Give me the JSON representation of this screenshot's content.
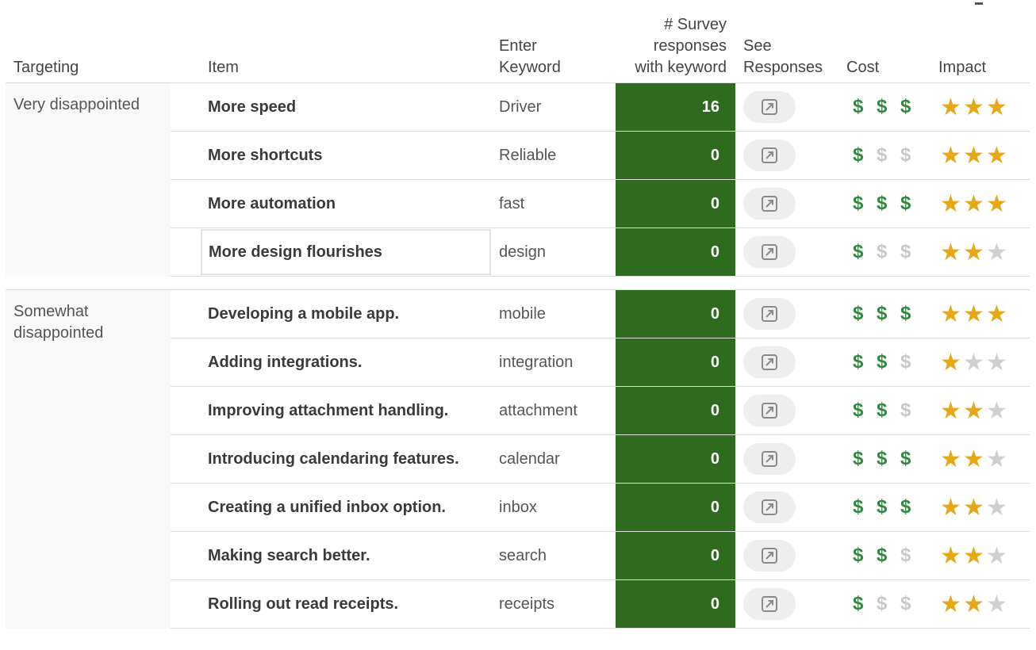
{
  "header": {
    "targeting": "Targeting",
    "item": "Item",
    "keyword_line1": "Enter",
    "keyword_line2": "Keyword",
    "count_line1": "# Survey",
    "count_line2": "responses",
    "count_line3": "with keyword",
    "see_line1": "See",
    "see_line2": "Responses",
    "cost": "Cost",
    "impact": "Impact"
  },
  "groups": [
    {
      "label": "Very disappointed",
      "rows": [
        {
          "item": "More speed",
          "keyword": "Driver",
          "count": "16",
          "cost": 3,
          "impact": 3
        },
        {
          "item": "More shortcuts",
          "keyword": "Reliable",
          "count": "0",
          "cost": 1,
          "impact": 3
        },
        {
          "item": "More automation",
          "keyword": "fast",
          "count": "0",
          "cost": 3,
          "impact": 3
        },
        {
          "item": "More design flourishes",
          "keyword": "design",
          "count": "0",
          "cost": 1,
          "impact": 2,
          "selected": true
        }
      ]
    },
    {
      "label": "Somewhat disappointed",
      "rows": [
        {
          "item": "Developing a mobile app.",
          "keyword": "mobile",
          "count": "0",
          "cost": 3,
          "impact": 3
        },
        {
          "item": "Adding integrations.",
          "keyword": "integration",
          "count": "0",
          "cost": 2,
          "impact": 1
        },
        {
          "item": "Improving attachment handling.",
          "keyword": "attachment",
          "count": "0",
          "cost": 2,
          "impact": 2
        },
        {
          "item": "Introducing calendaring features.",
          "keyword": "calendar",
          "count": "0",
          "cost": 3,
          "impact": 2
        },
        {
          "item": "Creating a unified inbox option.",
          "keyword": "inbox",
          "count": "0",
          "cost": 3,
          "impact": 2
        },
        {
          "item": "Making search better.",
          "keyword": "search",
          "count": "0",
          "cost": 2,
          "impact": 2
        },
        {
          "item": "Rolling out read receipts.",
          "keyword": "receipts",
          "count": "0",
          "cost": 1,
          "impact": 2
        }
      ]
    }
  ],
  "symbols": {
    "dollar": "$",
    "star": "★"
  },
  "icons": {
    "see_responses": "open-external-icon",
    "cost": "dollar-icon",
    "impact": "star-icon"
  },
  "colors": {
    "count_bg": "#2e6b1f",
    "dollar_on": "#2e8a3e",
    "star_on": "#e6a817",
    "inactive": "#cfcfcf"
  }
}
